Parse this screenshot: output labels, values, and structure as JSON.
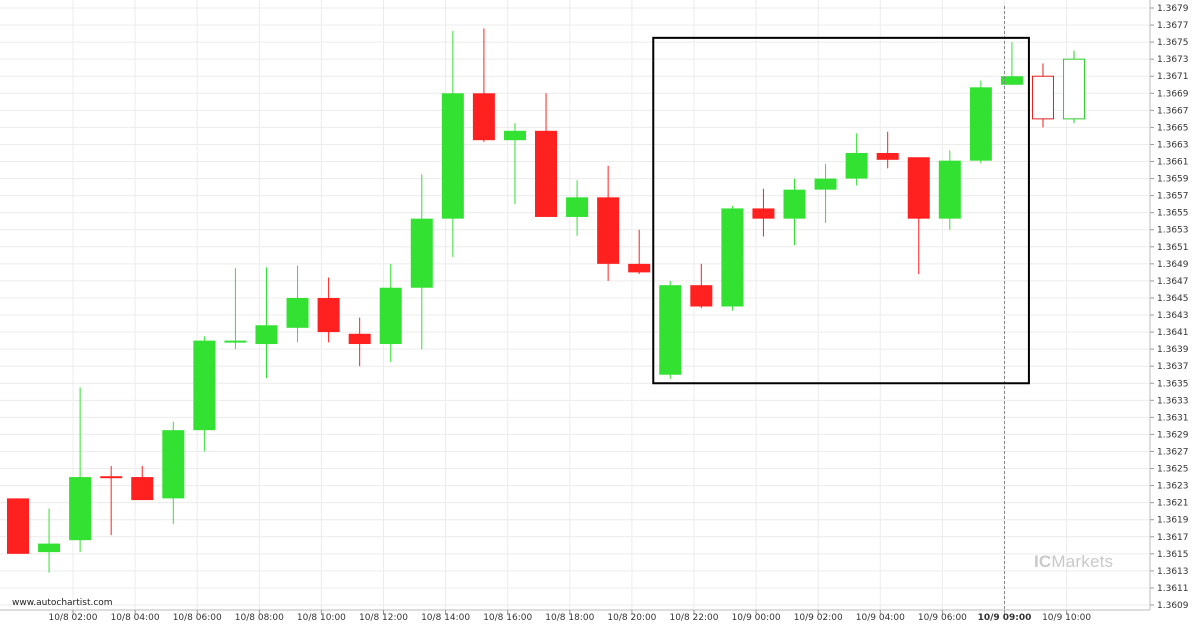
{
  "chart_data": {
    "type": "candlestick",
    "x_labels": [
      "10/8 02:00",
      "10/8 04:00",
      "10/8 06:00",
      "10/8 08:00",
      "10/8 10:00",
      "10/8 12:00",
      "10/8 14:00",
      "10/8 16:00",
      "10/8 18:00",
      "10/8 20:00",
      "10/8 22:00",
      "10/9 00:00",
      "10/9 02:00",
      "10/9 04:00",
      "10/9 06:00",
      "10/9 09:00",
      "10/9 10:00"
    ],
    "highlight_x_label": "10/9 09:00",
    "y_ticks": [
      "1.3679",
      "1.3677",
      "1.3675",
      "1.3673",
      "1.3671",
      "1.3669",
      "1.3667",
      "1.3665",
      "1.3663",
      "1.3661",
      "1.3659",
      "1.3657",
      "1.3655",
      "1.3653",
      "1.3651",
      "1.3649",
      "1.3647",
      "1.3645",
      "1.3643",
      "1.3641",
      "1.3639",
      "1.3637",
      "1.3635",
      "1.3633",
      "1.3631",
      "1.3629",
      "1.3627",
      "1.3625",
      "1.3623",
      "1.3621",
      "1.3619",
      "1.3617",
      "1.3615",
      "1.3613",
      "1.3611",
      "1.3609"
    ],
    "ylim": [
      1.3609,
      1.3679
    ],
    "grid": true,
    "candles": [
      {
        "o": 1.36215,
        "h": 1.36215,
        "l": 1.3615,
        "c": 1.3615
      },
      {
        "o": 1.36152,
        "h": 1.36203,
        "l": 1.36128,
        "c": 1.36162
      },
      {
        "o": 1.36166,
        "h": 1.36345,
        "l": 1.36152,
        "c": 1.3624
      },
      {
        "o": 1.36241,
        "h": 1.36253,
        "l": 1.36172,
        "c": 1.3624
      },
      {
        "o": 1.3624,
        "h": 1.36253,
        "l": 1.36213,
        "c": 1.36213
      },
      {
        "o": 1.36215,
        "h": 1.36305,
        "l": 1.36185,
        "c": 1.36295
      },
      {
        "o": 1.36295,
        "h": 1.36405,
        "l": 1.3627,
        "c": 1.364
      },
      {
        "o": 1.364,
        "h": 1.36485,
        "l": 1.3639,
        "c": 1.364
      },
      {
        "o": 1.36396,
        "h": 1.36486,
        "l": 1.36356,
        "c": 1.36418
      },
      {
        "o": 1.36415,
        "h": 1.36488,
        "l": 1.36398,
        "c": 1.3645
      },
      {
        "o": 1.3645,
        "h": 1.36474,
        "l": 1.36398,
        "c": 1.3641
      },
      {
        "o": 1.36408,
        "h": 1.36427,
        "l": 1.3637,
        "c": 1.36396
      },
      {
        "o": 1.36396,
        "h": 1.3649,
        "l": 1.36375,
        "c": 1.36462
      },
      {
        "o": 1.36462,
        "h": 1.36595,
        "l": 1.3639,
        "c": 1.36543
      },
      {
        "o": 1.36543,
        "h": 1.36763,
        "l": 1.36498,
        "c": 1.3669
      },
      {
        "o": 1.3669,
        "h": 1.36766,
        "l": 1.36633,
        "c": 1.36635
      },
      {
        "o": 1.36635,
        "h": 1.36655,
        "l": 1.3656,
        "c": 1.36646
      },
      {
        "o": 1.36646,
        "h": 1.3669,
        "l": 1.36545,
        "c": 1.36545
      },
      {
        "o": 1.36545,
        "h": 1.36588,
        "l": 1.36523,
        "c": 1.36568
      },
      {
        "o": 1.36568,
        "h": 1.36605,
        "l": 1.3647,
        "c": 1.3649
      },
      {
        "o": 1.3649,
        "h": 1.3653,
        "l": 1.36478,
        "c": 1.3648
      },
      {
        "o": 1.3636,
        "h": 1.3647,
        "l": 1.36355,
        "c": 1.36465
      },
      {
        "o": 1.36465,
        "h": 1.3649,
        "l": 1.36438,
        "c": 1.3644
      },
      {
        "o": 1.3644,
        "h": 1.36558,
        "l": 1.36435,
        "c": 1.36555
      },
      {
        "o": 1.36555,
        "h": 1.36578,
        "l": 1.36522,
        "c": 1.36543
      },
      {
        "o": 1.36543,
        "h": 1.3659,
        "l": 1.36512,
        "c": 1.36577
      },
      {
        "o": 1.36577,
        "h": 1.36607,
        "l": 1.36538,
        "c": 1.3659
      },
      {
        "o": 1.3659,
        "h": 1.36643,
        "l": 1.36582,
        "c": 1.3662
      },
      {
        "o": 1.3662,
        "h": 1.36645,
        "l": 1.36602,
        "c": 1.36612
      },
      {
        "o": 1.36615,
        "h": 1.36615,
        "l": 1.36478,
        "c": 1.36543
      },
      {
        "o": 1.36543,
        "h": 1.36623,
        "l": 1.3653,
        "c": 1.36611
      },
      {
        "o": 1.36611,
        "h": 1.36705,
        "l": 1.36608,
        "c": 1.36697
      },
      {
        "o": 1.367,
        "h": 1.3675,
        "l": 1.367,
        "c": 1.3671
      },
      {
        "o": 1.3671,
        "h": 1.36725,
        "l": 1.3665,
        "c": 1.3666,
        "hollow": true
      },
      {
        "o": 1.3666,
        "h": 1.3674,
        "l": 1.36655,
        "c": 1.3673,
        "hollow": true
      }
    ],
    "pattern_box": {
      "from_candle": 21,
      "to_candle": 32,
      "top": 1.36755,
      "bottom": 1.3635
    },
    "colors": {
      "up": "#33e133",
      "down": "#ff2020",
      "up_hollow": "#2ecc2e",
      "down_hollow": "#e02020",
      "box": "#000000",
      "grid": "#ececec",
      "vline": "#888888"
    }
  },
  "footer": {
    "source": "www.autochartist.com",
    "watermark_prefix": "IC",
    "watermark_suffix": "Markets"
  }
}
